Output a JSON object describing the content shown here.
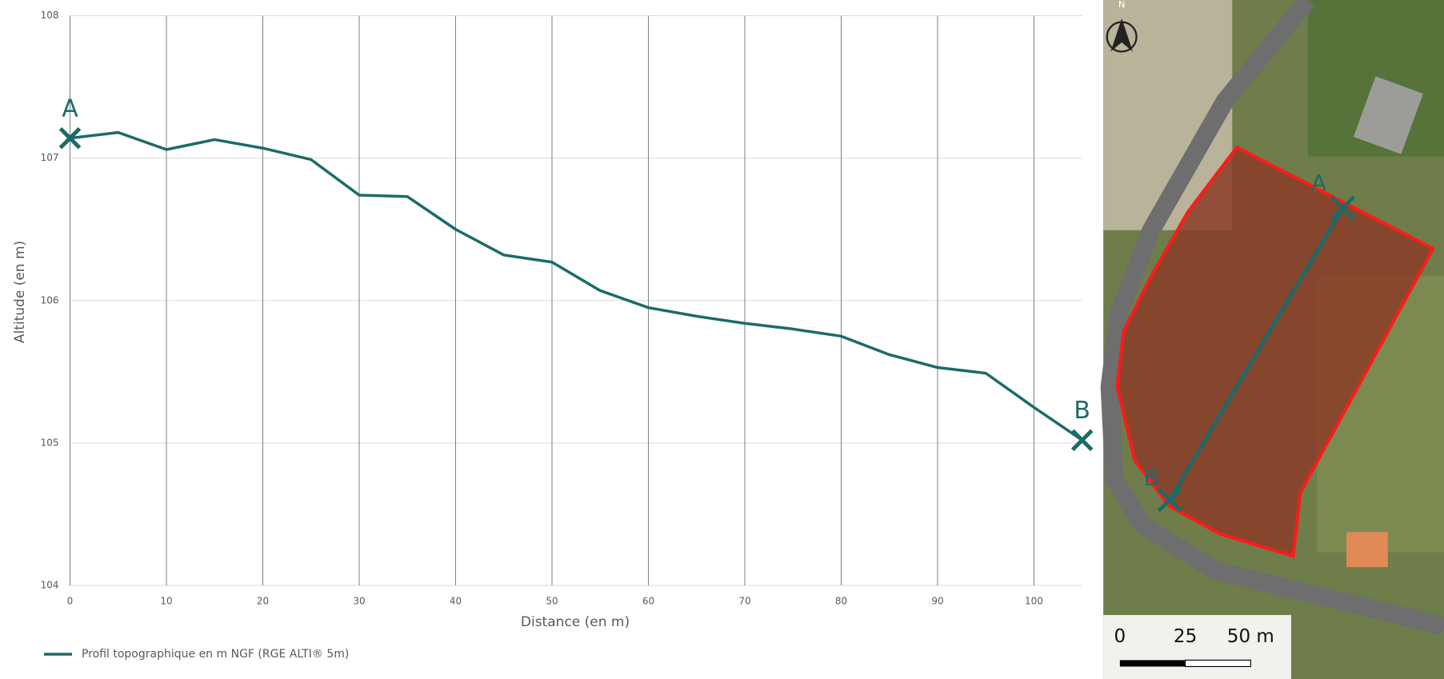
{
  "chart_data": {
    "type": "line",
    "x_label": "Distance (en m)",
    "y_label": "Altitude (en m)",
    "x": [
      0,
      5,
      10,
      15,
      20,
      25,
      30,
      35,
      40,
      45,
      50,
      55,
      60,
      65,
      70,
      75,
      80,
      85,
      90,
      95,
      100,
      105
    ],
    "series": [
      {
        "name": "Profil topographique en m NGF (RGE ALTI® 5m)",
        "color": "#1b6b68",
        "values": [
          107.14,
          107.18,
          107.06,
          107.13,
          107.07,
          106.99,
          106.74,
          106.73,
          106.5,
          106.32,
          106.27,
          106.07,
          105.95,
          105.89,
          105.84,
          105.8,
          105.75,
          105.62,
          105.53,
          105.49,
          105.25,
          105.02
        ]
      }
    ],
    "xlim": [
      0,
      105
    ],
    "xticks": [
      0,
      10,
      20,
      30,
      40,
      50,
      60,
      70,
      80,
      90,
      100
    ],
    "ylim": [
      104,
      108
    ],
    "yticks": [
      104,
      105,
      106,
      107,
      108
    ],
    "grid": true,
    "legend": "bottom-left",
    "annotations": [
      "A",
      "B"
    ]
  },
  "map": {
    "north": "N",
    "point_a": "A",
    "point_b": "B",
    "scale_labels": [
      "0",
      "25",
      "50 m"
    ]
  }
}
